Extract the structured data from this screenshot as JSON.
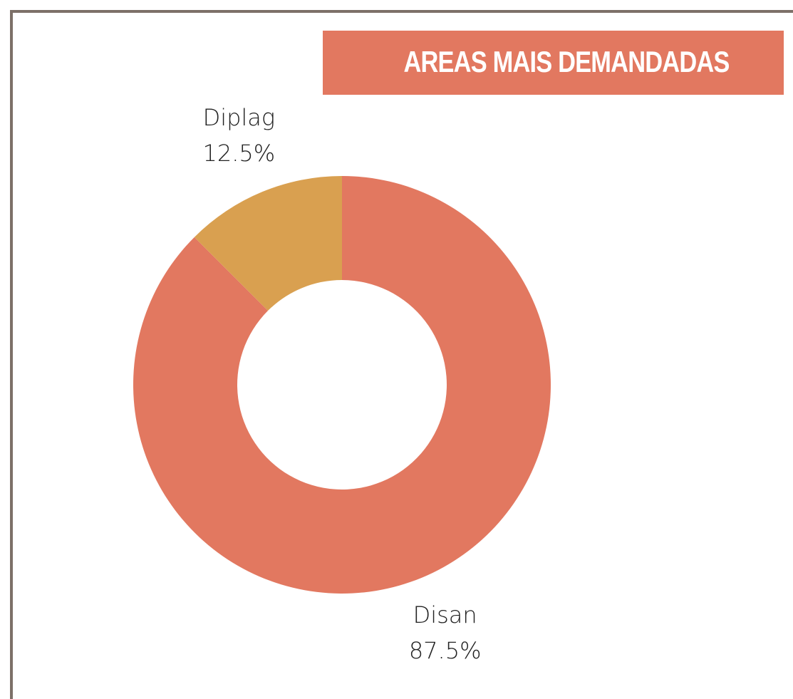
{
  "chart_data": {
    "type": "pie",
    "title": "AREAS MAIS DEMANDADAS",
    "categories": [
      "Disan",
      "Diplag"
    ],
    "values": [
      87.5,
      12.5
    ],
    "value_labels": [
      "87.5%",
      "12.5%"
    ],
    "colors": [
      "#e27860",
      "#d9a050"
    ],
    "hole": true
  }
}
